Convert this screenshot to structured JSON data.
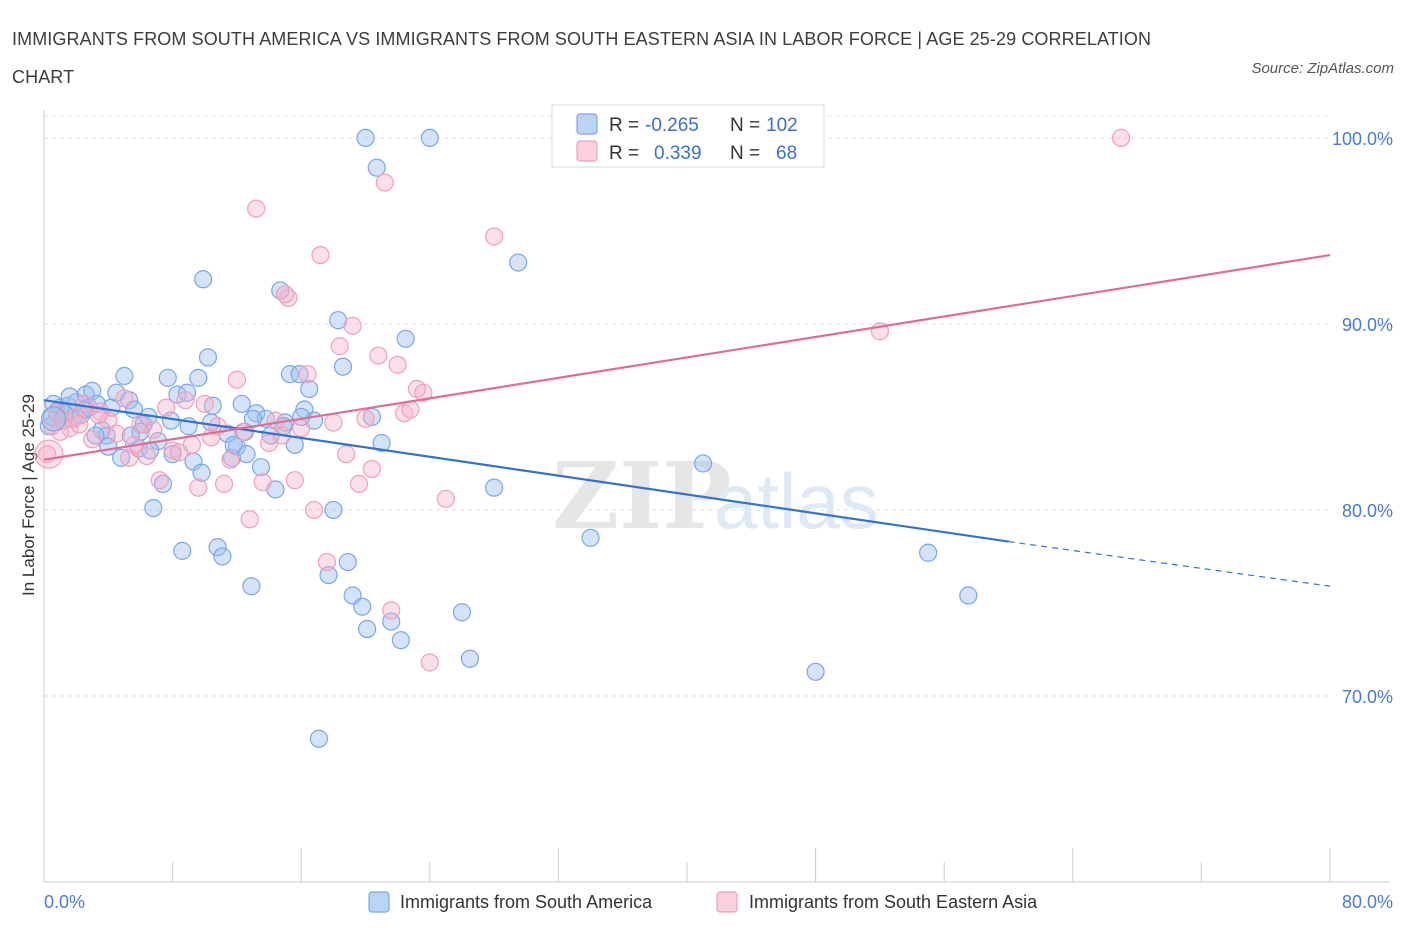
{
  "title": "IMMIGRANTS FROM SOUTH AMERICA VS IMMIGRANTS FROM SOUTH EASTERN ASIA IN LABOR FORCE | AGE 25-29 CORRELATION CHART",
  "source": "Source: ZipAtlas.com",
  "watermark": {
    "zip": "ZIP",
    "atlas": "atlas"
  },
  "chart_data": {
    "type": "scatter",
    "title": "IMMIGRANTS FROM SOUTH AMERICA VS IMMIGRANTS FROM SOUTH EASTERN ASIA IN LABOR FORCE | AGE 25-29 CORRELATION CHART",
    "xlabel": "",
    "ylabel": "In Labor Force | Age 25-29",
    "xlim": [
      0,
      80
    ],
    "ylim": [
      60,
      101.5
    ],
    "x_tick_labels": [
      "0.0%",
      "80.0%"
    ],
    "y_ticks": [
      70,
      80,
      90,
      100
    ],
    "y_tick_labels": [
      "70.0%",
      "80.0%",
      "90.0%",
      "100.0%"
    ],
    "grid": true,
    "legend_position": "top-center",
    "series": [
      {
        "name": "Immigrants from South America",
        "color": "#7aa7e8",
        "line_color": "#3373d0",
        "R": "-0.265",
        "N": "102",
        "trend": {
          "x_start": 0,
          "y_start": 85.9,
          "x_solid_end": 60,
          "y_solid_end": 78.3,
          "x_end": 80,
          "y_end": 75.9
        },
        "points": [
          [
            0.3,
            84.5
          ],
          [
            0.5,
            85.0
          ],
          [
            0.8,
            85.3
          ],
          [
            1.0,
            85.5
          ],
          [
            1.3,
            85.2
          ],
          [
            1.5,
            85.6
          ],
          [
            1.8,
            84.9
          ],
          [
            2.0,
            85.8
          ],
          [
            2.3,
            85.1
          ],
          [
            2.6,
            86.2
          ],
          [
            2.8,
            85.5
          ],
          [
            3.0,
            86.4
          ],
          [
            3.3,
            85.7
          ],
          [
            3.6,
            84.3
          ],
          [
            3.9,
            84.0
          ],
          [
            4.2,
            85.5
          ],
          [
            4.5,
            86.3
          ],
          [
            4.8,
            82.8
          ],
          [
            5.0,
            87.2
          ],
          [
            5.3,
            85.9
          ],
          [
            5.6,
            85.4
          ],
          [
            5.9,
            83.3
          ],
          [
            6.2,
            84.6
          ],
          [
            6.5,
            85.0
          ],
          [
            6.8,
            80.1
          ],
          [
            7.1,
            83.7
          ],
          [
            7.4,
            81.4
          ],
          [
            7.7,
            87.1
          ],
          [
            8.0,
            83.0
          ],
          [
            8.3,
            86.2
          ],
          [
            8.6,
            77.8
          ],
          [
            9.0,
            84.5
          ],
          [
            9.3,
            82.6
          ],
          [
            9.6,
            87.1
          ],
          [
            9.9,
            92.4
          ],
          [
            10.2,
            88.2
          ],
          [
            10.5,
            85.6
          ],
          [
            10.8,
            78.0
          ],
          [
            11.1,
            77.5
          ],
          [
            11.4,
            84.1
          ],
          [
            11.7,
            82.8
          ],
          [
            12.0,
            83.4
          ],
          [
            12.3,
            85.7
          ],
          [
            12.6,
            83.0
          ],
          [
            12.9,
            75.9
          ],
          [
            13.2,
            85.2
          ],
          [
            13.5,
            82.3
          ],
          [
            13.8,
            84.9
          ],
          [
            14.1,
            84.0
          ],
          [
            14.4,
            81.1
          ],
          [
            14.7,
            91.8
          ],
          [
            15.0,
            84.7
          ],
          [
            15.3,
            87.3
          ],
          [
            15.6,
            83.5
          ],
          [
            15.9,
            87.3
          ],
          [
            16.2,
            85.4
          ],
          [
            16.5,
            86.5
          ],
          [
            16.8,
            84.8
          ],
          [
            17.1,
            67.7
          ],
          [
            17.7,
            76.5
          ],
          [
            18.0,
            80.0
          ],
          [
            18.3,
            90.2
          ],
          [
            18.6,
            87.7
          ],
          [
            18.9,
            77.2
          ],
          [
            19.2,
            75.4
          ],
          [
            19.8,
            74.8
          ],
          [
            20.1,
            73.6
          ],
          [
            20.4,
            85.0
          ],
          [
            20.7,
            98.4
          ],
          [
            21.0,
            83.6
          ],
          [
            21.6,
            74.0
          ],
          [
            22.2,
            73.0
          ],
          [
            22.5,
            89.2
          ],
          [
            26.0,
            74.5
          ],
          [
            26.5,
            72.0
          ],
          [
            28.0,
            81.2
          ],
          [
            29.5,
            93.3
          ],
          [
            34.0,
            78.5
          ],
          [
            41.0,
            82.5
          ],
          [
            48.0,
            71.3
          ],
          [
            55.0,
            77.7
          ],
          [
            57.5,
            75.4
          ],
          [
            20.0,
            100.0
          ],
          [
            24.0,
            100.0
          ],
          [
            6.0,
            84.2
          ],
          [
            4.0,
            83.4
          ],
          [
            3.2,
            84.0
          ],
          [
            1.6,
            86.1
          ],
          [
            2.5,
            85.4
          ],
          [
            9.8,
            82.0
          ],
          [
            12.5,
            84.2
          ],
          [
            11.8,
            83.5
          ],
          [
            7.9,
            84.8
          ],
          [
            6.6,
            83.2
          ],
          [
            14.9,
            84.5
          ],
          [
            10.4,
            84.7
          ],
          [
            8.9,
            86.3
          ],
          [
            5.4,
            84.0
          ],
          [
            13.0,
            84.9
          ],
          [
            16.0,
            85.0
          ],
          [
            0.6,
            85.7
          ],
          [
            1.2,
            84.8
          ]
        ]
      },
      {
        "name": "Immigrants from South Eastern Asia",
        "color": "#f0a0ba",
        "line_color": "#e06c93",
        "R": "0.339",
        "N": "68",
        "trend": {
          "x_start": 0,
          "y_start": 82.7,
          "x_solid_end": 80,
          "y_solid_end": 93.7,
          "x_end": 80,
          "y_end": 93.7
        },
        "points": [
          [
            0.2,
            83.0
          ],
          [
            0.5,
            84.5
          ],
          [
            0.8,
            85.2
          ],
          [
            1.2,
            84.8
          ],
          [
            1.6,
            84.4
          ],
          [
            2.0,
            85.0
          ],
          [
            2.5,
            85.7
          ],
          [
            3.0,
            83.8
          ],
          [
            3.5,
            85.3
          ],
          [
            4.0,
            84.8
          ],
          [
            4.5,
            84.1
          ],
          [
            5.0,
            86.0
          ],
          [
            5.3,
            82.8
          ],
          [
            5.6,
            83.5
          ],
          [
            6.0,
            84.6
          ],
          [
            6.4,
            82.9
          ],
          [
            6.8,
            84.3
          ],
          [
            7.2,
            81.6
          ],
          [
            7.6,
            85.5
          ],
          [
            8.0,
            83.2
          ],
          [
            8.4,
            83.1
          ],
          [
            8.8,
            85.9
          ],
          [
            9.2,
            83.5
          ],
          [
            9.6,
            81.2
          ],
          [
            10.0,
            85.7
          ],
          [
            10.4,
            83.9
          ],
          [
            10.8,
            84.5
          ],
          [
            11.2,
            81.4
          ],
          [
            11.6,
            82.7
          ],
          [
            12.0,
            87.0
          ],
          [
            12.4,
            84.2
          ],
          [
            12.8,
            79.5
          ],
          [
            13.2,
            96.2
          ],
          [
            13.6,
            81.5
          ],
          [
            14.0,
            83.6
          ],
          [
            14.4,
            84.8
          ],
          [
            14.8,
            84.0
          ],
          [
            15.2,
            91.4
          ],
          [
            15.6,
            81.6
          ],
          [
            16.0,
            84.4
          ],
          [
            16.4,
            87.3
          ],
          [
            16.8,
            80.0
          ],
          [
            17.2,
            93.7
          ],
          [
            17.6,
            77.2
          ],
          [
            18.0,
            84.7
          ],
          [
            18.4,
            88.8
          ],
          [
            18.8,
            83.0
          ],
          [
            19.2,
            89.9
          ],
          [
            19.6,
            81.4
          ],
          [
            20.0,
            84.9
          ],
          [
            20.4,
            82.2
          ],
          [
            20.8,
            88.3
          ],
          [
            21.2,
            97.6
          ],
          [
            21.6,
            74.6
          ],
          [
            22.0,
            87.8
          ],
          [
            22.4,
            85.2
          ],
          [
            22.8,
            85.4
          ],
          [
            23.2,
            86.5
          ],
          [
            23.6,
            86.3
          ],
          [
            24.0,
            71.8
          ],
          [
            25.0,
            80.6
          ],
          [
            28.0,
            94.7
          ],
          [
            52.0,
            89.6
          ],
          [
            67.0,
            100.0
          ],
          [
            1.0,
            84.2
          ],
          [
            2.2,
            84.6
          ],
          [
            3.4,
            85.1
          ],
          [
            15.0,
            91.6
          ]
        ]
      }
    ]
  },
  "legend": {
    "r_label": "R =",
    "n_label": "N =",
    "entries": [
      {
        "r": "-0.265",
        "n": "102"
      },
      {
        "r": "0.339",
        "n": "68"
      }
    ]
  },
  "bottom_legend": [
    "Immigrants from South America",
    "Immigrants from South Eastern Asia"
  ]
}
